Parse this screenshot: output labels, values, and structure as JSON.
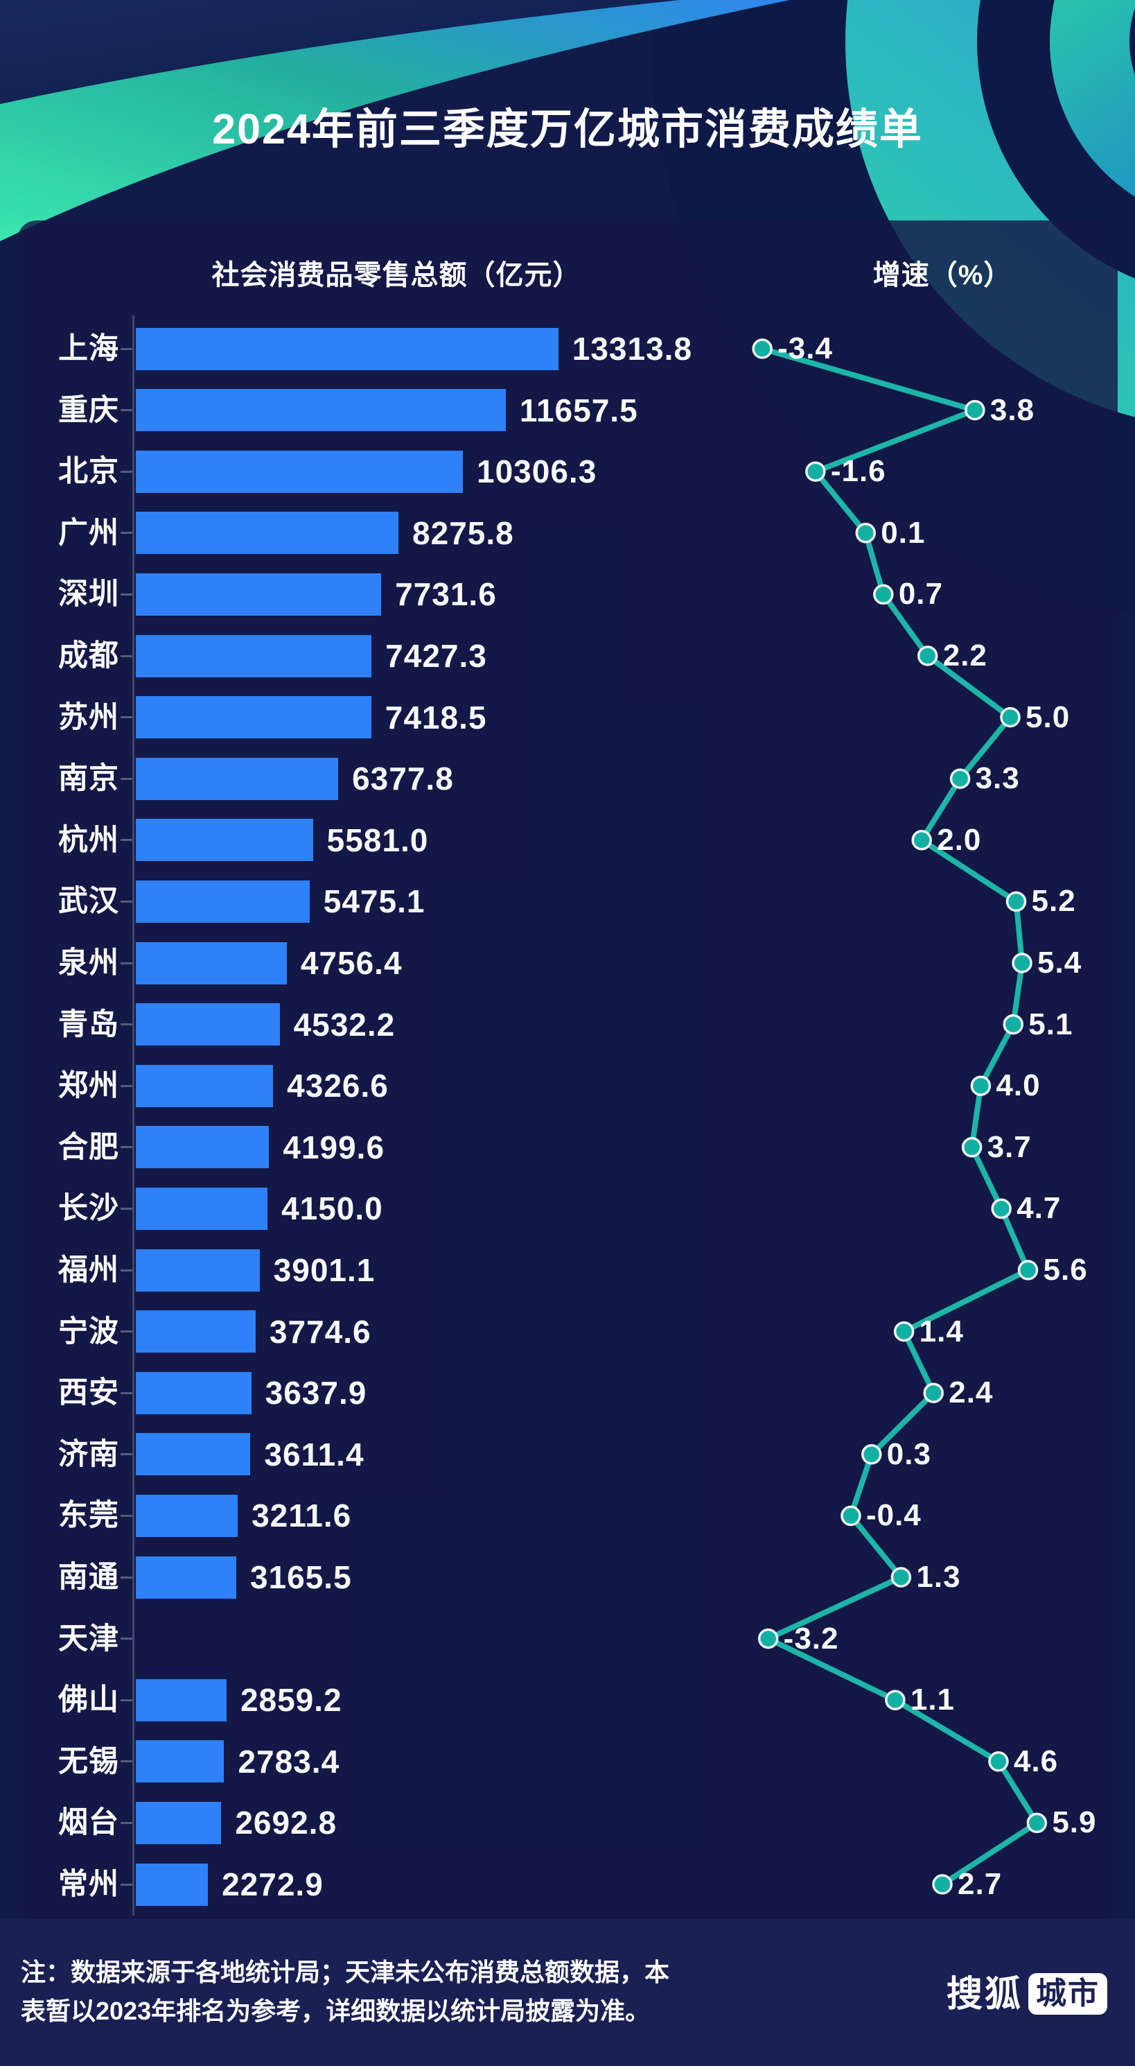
{
  "title": "2024年前三季度万亿城市消费成绩单",
  "columns": {
    "left": "社会消费品零售总额（亿元）",
    "right": "增速（%）"
  },
  "chart_data": {
    "type": "bar+line",
    "orientation": "horizontal",
    "categories": [
      "上海",
      "重庆",
      "北京",
      "广州",
      "深圳",
      "成都",
      "苏州",
      "南京",
      "杭州",
      "武汉",
      "泉州",
      "青岛",
      "郑州",
      "合肥",
      "长沙",
      "福州",
      "宁波",
      "西安",
      "济南",
      "东莞",
      "南通",
      "天津",
      "佛山",
      "无锡",
      "烟台",
      "常州"
    ],
    "series": [
      {
        "name": "社会消费品零售总额（亿元）",
        "type": "bar",
        "values": [
          13313.8,
          11657.5,
          10306.3,
          8275.8,
          7731.6,
          7427.3,
          7418.5,
          6377.8,
          5581.0,
          5475.1,
          4756.4,
          4532.2,
          4326.6,
          4199.6,
          4150.0,
          3901.1,
          3774.6,
          3637.9,
          3611.4,
          3211.6,
          3165.5,
          null,
          2859.2,
          2783.4,
          2692.8,
          2272.9
        ]
      },
      {
        "name": "增速（%）",
        "type": "line",
        "values": [
          -3.4,
          3.8,
          -1.6,
          0.1,
          0.7,
          2.2,
          5.0,
          3.3,
          2.0,
          5.2,
          5.4,
          5.1,
          4.0,
          3.7,
          4.7,
          5.6,
          1.4,
          2.4,
          0.3,
          -0.4,
          1.3,
          -3.2,
          1.1,
          4.6,
          5.9,
          2.7
        ]
      }
    ],
    "bar_color": "#2e81f7",
    "line_color": "#1db5a7",
    "dot_fill": "#12b0a2",
    "dot_stroke": "#edf2f8",
    "legend_position": "none",
    "grid": false
  },
  "footer": {
    "note_line1": "注：数据来源于各地统计局；天津未公布消费总额数据，本",
    "note_line2": "表暂以2023年排名为参考，详细数据以统计局披露为准。",
    "logo_text": "搜狐",
    "logo_badge": "城市"
  }
}
